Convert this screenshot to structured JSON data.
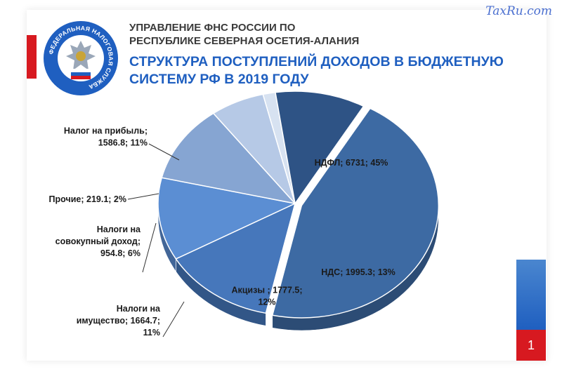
{
  "watermark": "TaxRu.com",
  "header": {
    "org_line1": "УПРАВЛЕНИЕ ФНС РОССИИ ПО",
    "org_line2": "РЕСПУБЛИКЕ СЕВЕРНАЯ ОСЕТИЯ-АЛАНИЯ",
    "title_line1": "СТРУКТУРА  ПОСТУПЛЕНИЙ  ДОХОДОВ  В БЮДЖЕТНУЮ",
    "title_line2": "СИСТЕМУ РФ В  2019  ГОДУ"
  },
  "logo": {
    "icon": "fns-emblem-icon",
    "text": "ФЕДЕРАЛЬНАЯ НАЛОГОВАЯ СЛУЖБА"
  },
  "slide_number": "1",
  "colors": {
    "accent_red": "#d71920",
    "accent_blue": "#1f5fc0"
  },
  "chart_data": {
    "type": "pie",
    "title": "",
    "legend": "none",
    "slices": [
      {
        "name": "НДФЛ",
        "value": 6731,
        "percent": 45,
        "color": "#3d6aa3",
        "label_lines": [
          "НДФЛ; 6731; 45%"
        ]
      },
      {
        "name": "НДС",
        "value": 1995.3,
        "percent": 13,
        "color": "#4677bb",
        "label_lines": [
          "НДС; 1995.3; 13%"
        ]
      },
      {
        "name": "Акцизы ",
        "value": 1777.5,
        "percent": 12,
        "color": "#5b8ed3",
        "label_lines": [
          "Акцизы ; 1777.5;",
          "12%"
        ]
      },
      {
        "name": "Налоги на имущество",
        "value": 1664.7,
        "percent": 11,
        "color": "#86a5d2",
        "label_lines": [
          "Налоги на",
          "имущество; 1664.7;",
          "11%"
        ]
      },
      {
        "name": "Налоги на совокупный доход",
        "value": 954.8,
        "percent": 6,
        "color": "#b6c9e6",
        "label_lines": [
          "Налоги на",
          "совокупный доход;",
          "954.8; 6%"
        ]
      },
      {
        "name": "Прочие",
        "value": 219.1,
        "percent": 2,
        "color": "#d7e2f1",
        "label_lines": [
          "Прочие; 219.1; 2%"
        ]
      },
      {
        "name": "Налог на прибыль",
        "value": 1586.8,
        "percent": 11,
        "color": "#2e5385",
        "label_lines": [
          "Налог на прибыль;",
          "1586.8; 11%"
        ]
      }
    ]
  }
}
